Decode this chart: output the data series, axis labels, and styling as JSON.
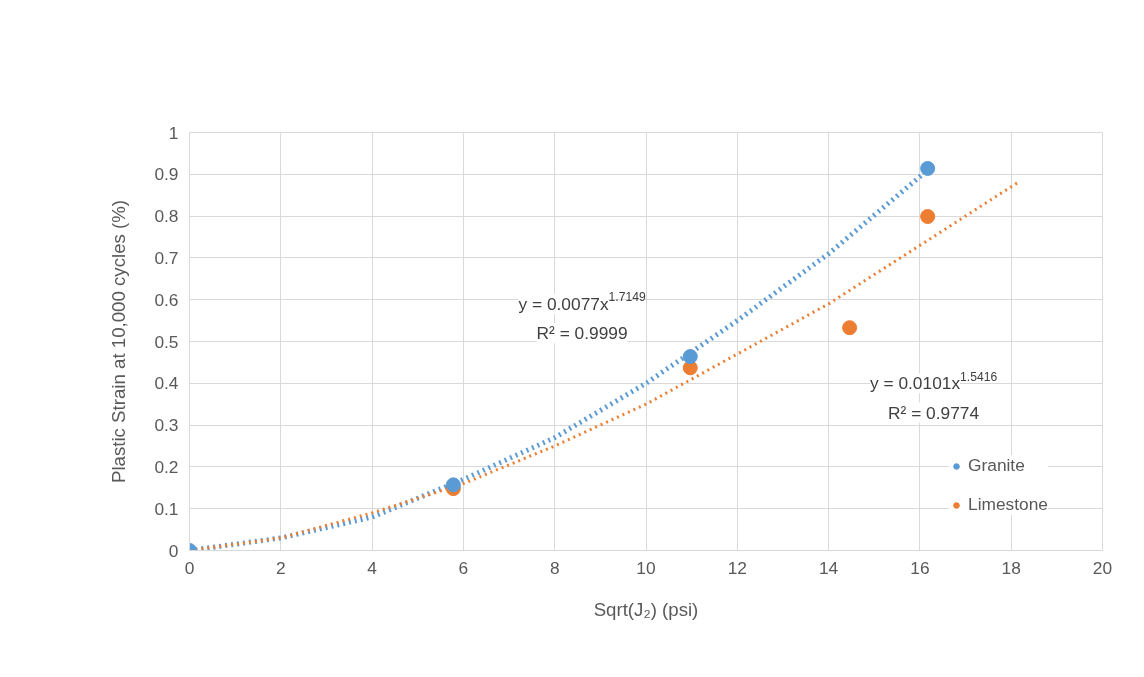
{
  "chart_data": {
    "type": "scatter",
    "xlabel": "Sqrt(J₂) (psi)",
    "ylabel": "Plastic Strain at 10,000 cycles (%)",
    "xlim": [
      0,
      20
    ],
    "xticks": [
      0,
      2,
      4,
      6,
      8,
      10,
      12,
      14,
      16,
      18,
      20
    ],
    "ylim": [
      0,
      1
    ],
    "yticks": [
      0,
      0.1,
      0.2,
      0.3,
      0.4,
      0.5,
      0.6,
      0.7,
      0.8,
      0.9,
      1
    ],
    "grid": true,
    "legend": "right",
    "marker": "circle",
    "series": [
      {
        "name": "Limestone",
        "color": "#ed7d31",
        "x": [
          5.78,
          10.97,
          14.46,
          16.17
        ],
        "values": [
          0.148,
          0.437,
          0.533,
          0.799
        ]
      },
      {
        "name": "Granite",
        "color": "#5b9bd5",
        "x": [
          0,
          5.78,
          10.97,
          16.17
        ],
        "values": [
          0,
          0.157,
          0.464,
          0.914
        ]
      },
      {
        "type": "line",
        "color": "#5b9bd5",
        "line_style": "dotted",
        "marker": "none",
        "x": [
          0,
          2,
          4,
          6,
          8,
          10,
          12,
          14,
          16.17
        ],
        "values": [
          0,
          0.03,
          0.08,
          0.17,
          0.27,
          0.4,
          0.55,
          0.71,
          0.91
        ]
      },
      {
        "type": "line",
        "color": "#ed7d31",
        "line_style": "dotted",
        "marker": "none",
        "x": [
          0,
          2,
          4,
          6,
          8,
          10,
          12,
          14,
          16,
          18.14
        ],
        "values": [
          0,
          0.03,
          0.09,
          0.16,
          0.25,
          0.35,
          0.47,
          0.59,
          0.73,
          0.88
        ]
      }
    ],
    "annotations": [
      "y = 0.0077x$^{1.7149}$",
      "R² = 0.9999",
      "y = 0.0101x$^{1.5416}$",
      "R² = 0.9774"
    ]
  }
}
